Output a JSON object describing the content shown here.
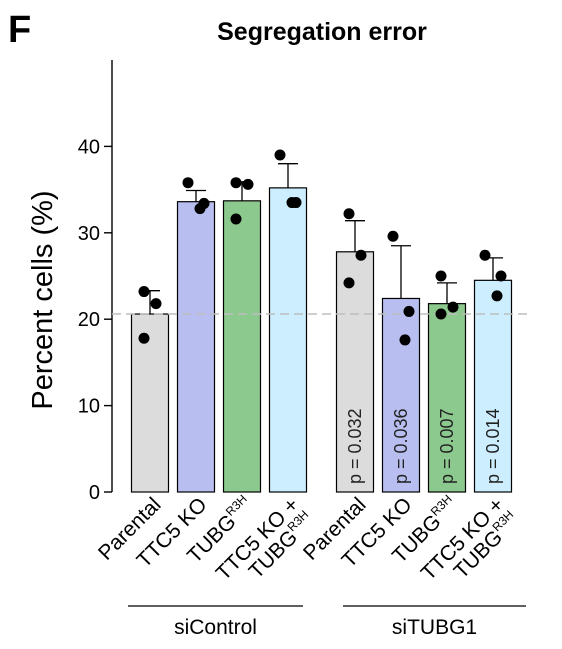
{
  "panel_letter": "F",
  "chart_data": {
    "type": "bar",
    "title": "Segregation error",
    "ylabel": "Percent cells (%)",
    "xlabel": "",
    "ylim": [
      0,
      50
    ],
    "yticks": [
      0,
      10,
      20,
      30,
      40
    ],
    "grid": false,
    "reference_line": 20.6,
    "groups": [
      {
        "label": "siControl",
        "bar_indices": [
          0,
          1,
          2,
          3
        ]
      },
      {
        "label": "siTUBG1",
        "bar_indices": [
          4,
          5,
          6,
          7
        ]
      }
    ],
    "bars": [
      {
        "label": "Parental",
        "value": 20.6,
        "error": 2.7,
        "points": [
          23.2,
          21.8,
          17.8
        ],
        "color": "#dcdcdc",
        "pvalue": ""
      },
      {
        "label": "TTC5 KO",
        "value": 33.6,
        "error": 1.3,
        "points": [
          35.8,
          33.4,
          32.8
        ],
        "color": "#b8bff0",
        "pvalue": ""
      },
      {
        "label": "TUBG",
        "superscript": "R3H",
        "value": 33.7,
        "error": 2.2,
        "points": [
          35.8,
          35.6,
          31.6
        ],
        "color": "#8cc98f",
        "pvalue": ""
      },
      {
        "label": "TTC5 KO +",
        "label2": "TUBG",
        "superscript": "R3H",
        "value": 35.2,
        "error": 2.8,
        "points": [
          39.0,
          33.5,
          33.5
        ],
        "color": "#cdeeff",
        "pvalue": ""
      },
      {
        "label": "Parental",
        "value": 27.8,
        "error": 3.6,
        "points": [
          32.2,
          27.4,
          24.2
        ],
        "color": "#dcdcdc",
        "pvalue": "p = 0.032"
      },
      {
        "label": "TTC5 KO",
        "value": 22.4,
        "error": 6.1,
        "points": [
          29.6,
          20.9,
          17.6
        ],
        "color": "#b8bff0",
        "pvalue": "p = 0.036"
      },
      {
        "label": "TUBG",
        "superscript": "R3H",
        "value": 21.8,
        "error": 2.4,
        "points": [
          25.0,
          21.4,
          20.6
        ],
        "color": "#8cc98f",
        "pvalue": "p = 0.007"
      },
      {
        "label": "TTC5 KO +",
        "label2": "TUBG",
        "superscript": "R3H",
        "value": 24.5,
        "error": 2.6,
        "points": [
          27.4,
          25.0,
          22.7
        ],
        "color": "#cdeeff",
        "pvalue": "p = 0.014"
      }
    ]
  }
}
